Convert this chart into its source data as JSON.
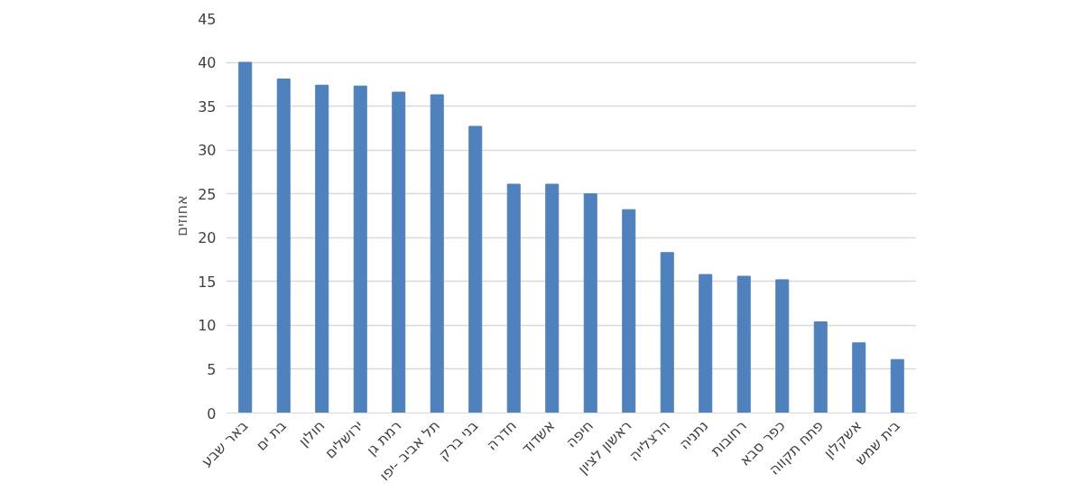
{
  "chart_data": {
    "type": "bar",
    "ylabel": "אחוזים",
    "categories": [
      "באר שבע",
      "בת ים",
      "חולון",
      "ירושלים",
      "רמת גן",
      "תל אביב -יפו",
      "בני ברק",
      "חדרה",
      "אשדוד",
      "חיפה",
      "ראשון לציון",
      "הרצלייה",
      "נתניה",
      "רחובות",
      "כפר סבא",
      "פתח תקווה",
      "אשקלון",
      "בית שמש"
    ],
    "values": [
      40,
      38.1,
      37.4,
      37.3,
      36.6,
      36.3,
      32.7,
      26.1,
      26.1,
      25.0,
      23.2,
      18.3,
      15.8,
      15.6,
      15.2,
      10.4,
      8.0,
      6.1
    ],
    "color": "#4f81bd",
    "ylim": [
      0,
      45
    ],
    "yticks": [
      0,
      5,
      10,
      15,
      20,
      25,
      30,
      35,
      40,
      45
    ],
    "grid": "y"
  }
}
